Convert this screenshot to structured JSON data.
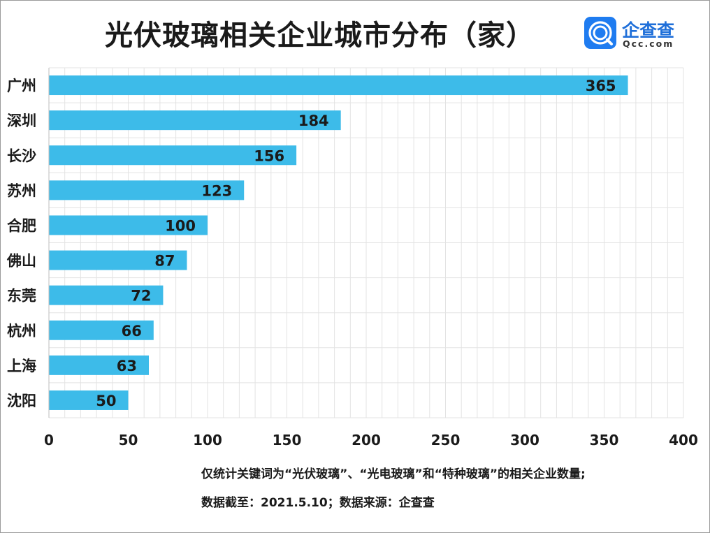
{
  "chart_data": {
    "type": "bar",
    "orientation": "horizontal",
    "title": "光伏玻璃相关企业城市分布（家）",
    "categories": [
      "广州",
      "深圳",
      "长沙",
      "苏州",
      "合肥",
      "佛山",
      "东莞",
      "杭州",
      "上海",
      "沈阳"
    ],
    "values": [
      365,
      184,
      156,
      123,
      100,
      87,
      72,
      66,
      63,
      50
    ],
    "xlim": [
      0,
      400
    ],
    "xticks": [
      0,
      50,
      100,
      150,
      200,
      250,
      300,
      350,
      400
    ],
    "grid": true,
    "legend": "none",
    "bar_color": "#3dbbe9",
    "data_labels": true
  },
  "logo": {
    "name": "企查查",
    "domain": "Qcc.com",
    "color": "#1f7cf0"
  },
  "notes": {
    "line1": "仅统计关键词为“光伏玻璃”、“光电玻璃”和“特种玻璃”的相关企业数量;",
    "line2": "数据截至：2021.5.10；数据来源：企查查"
  }
}
